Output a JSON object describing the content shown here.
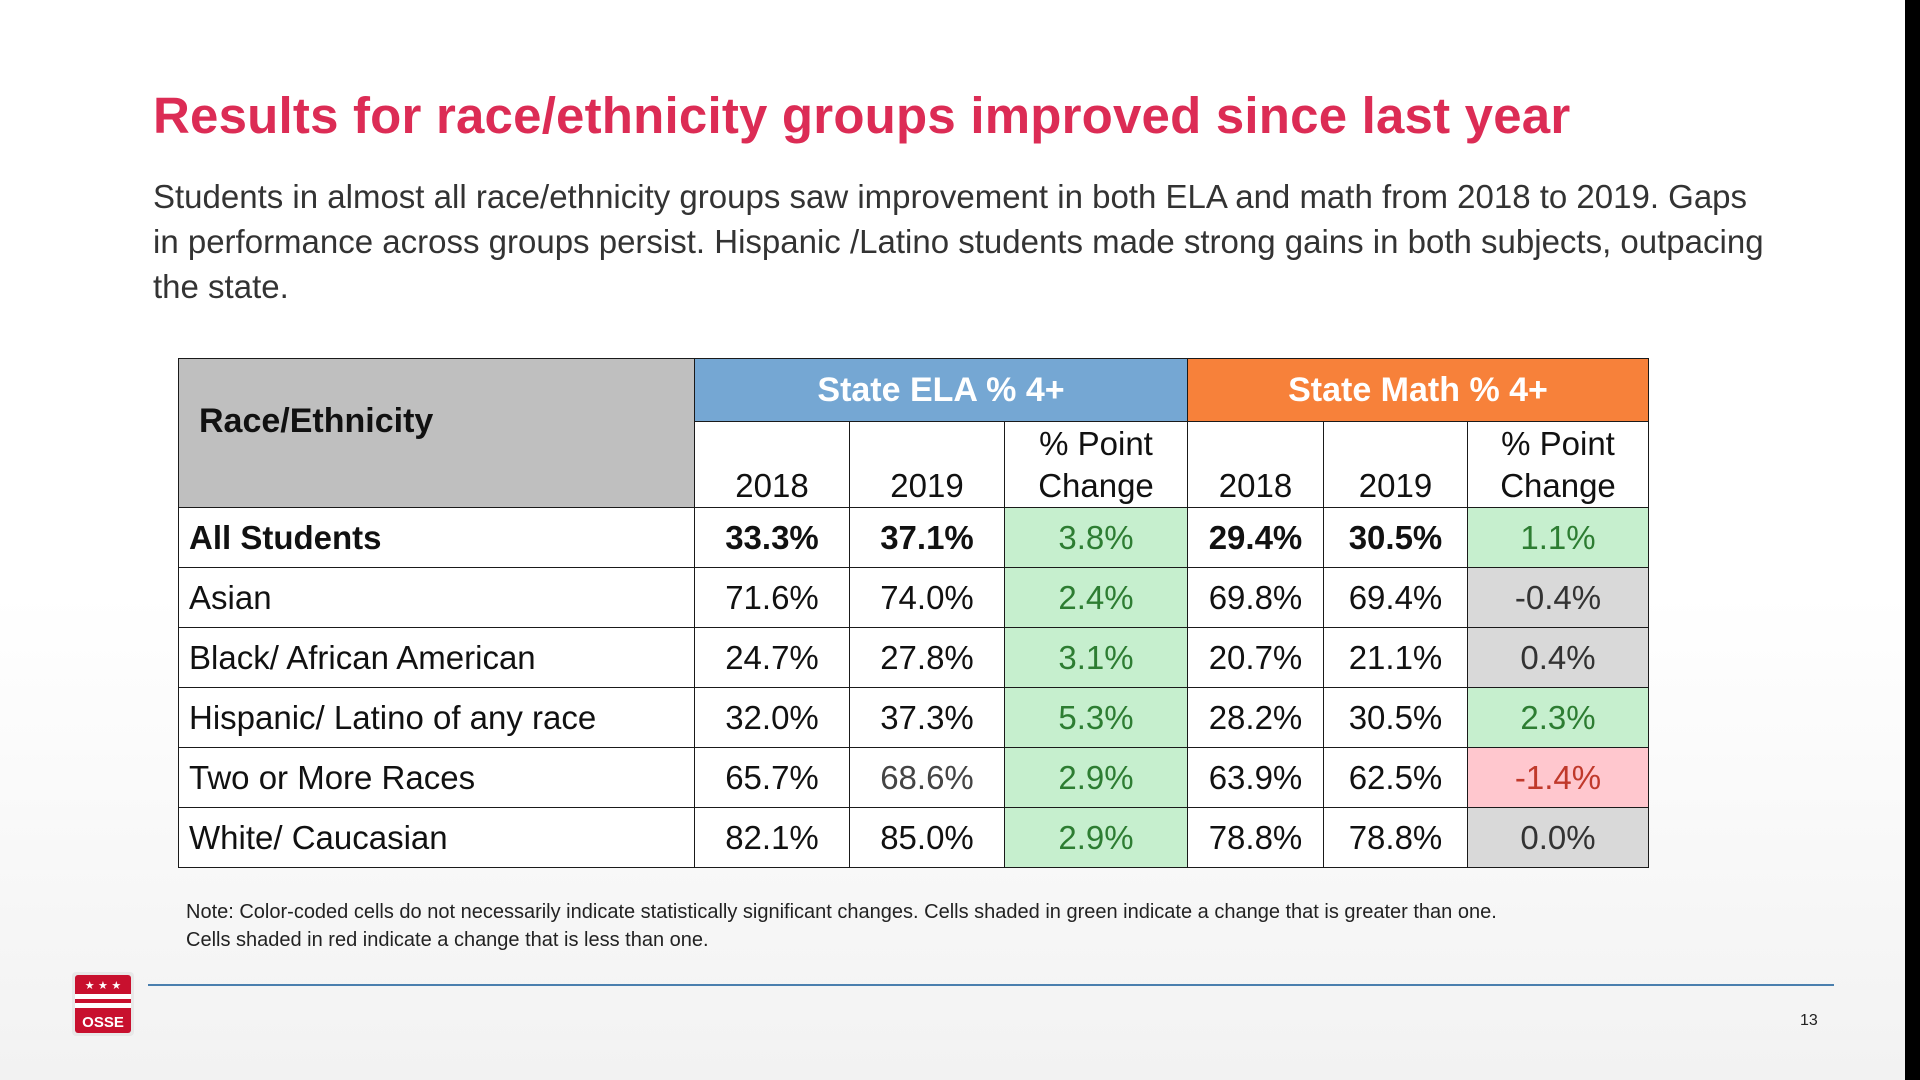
{
  "slide": {
    "title": "Results for race/ethnicity groups improved since last year",
    "subtitle": "Students in almost all race/ethnicity groups saw improvement in both ELA and math from 2018 to 2019. Gaps in performance across groups persist. Hispanic /Latino students made strong gains in both subjects, outpacing the state.",
    "note_line1": "Note: Color-coded cells do not necessarily indicate statistically significant changes. Cells shaded in green indicate a change that is greater than one.",
    "note_line2": "Cells shaded in red indicate a change that is less than one.",
    "page_number": "13",
    "logo_text": "OSSE",
    "logo_stars": "★ ★ ★",
    "colors": {
      "title": "#dc2c55",
      "ela_header": "#75a7d3",
      "math_header": "#f7813a",
      "green_cell": "#c6efce",
      "red_cell": "#ffc7ce",
      "grey_cell": "#d9d9d9"
    }
  },
  "table": {
    "race_header": "Race/Ethnicity",
    "ela_header": "State ELA % 4+",
    "math_header": "State Math % 4+",
    "col_2018": "2018",
    "col_2019": "2019",
    "col_change_line1": "% Point",
    "col_change_line2": "Change",
    "rows": [
      {
        "group": "All Students",
        "ela_2018": "33.3%",
        "ela_2019": "37.1%",
        "ela_change": "3.8%",
        "math_2018": "29.4%",
        "math_2019": "30.5%",
        "math_change": "1.1%",
        "ela_shade": "green",
        "math_shade": "green"
      },
      {
        "group": "Asian",
        "ela_2018": "71.6%",
        "ela_2019": "74.0%",
        "ela_change": "2.4%",
        "math_2018": "69.8%",
        "math_2019": "69.4%",
        "math_change": "-0.4%",
        "ela_shade": "green",
        "math_shade": "grey"
      },
      {
        "group": "Black/ African American",
        "ela_2018": "24.7%",
        "ela_2019": "27.8%",
        "ela_change": "3.1%",
        "math_2018": "20.7%",
        "math_2019": "21.1%",
        "math_change": "0.4%",
        "ela_shade": "green",
        "math_shade": "grey"
      },
      {
        "group": "Hispanic/ Latino of any race",
        "ela_2018": "32.0%",
        "ela_2019": "37.3%",
        "ela_change": "5.3%",
        "math_2018": "28.2%",
        "math_2019": "30.5%",
        "math_change": "2.3%",
        "ela_shade": "green",
        "math_shade": "green"
      },
      {
        "group": "Two or More Races",
        "ela_2018": "65.7%",
        "ela_2019": "68.6%",
        "ela_change": "2.9%",
        "math_2018": "63.9%",
        "math_2019": "62.5%",
        "math_change": "-1.4%",
        "ela_shade": "green",
        "math_shade": "red"
      },
      {
        "group": "White/ Caucasian",
        "ela_2018": "82.1%",
        "ela_2019": "85.0%",
        "ela_change": "2.9%",
        "math_2018": "78.8%",
        "math_2019": "78.8%",
        "math_change": "0.0%",
        "ela_shade": "green",
        "math_shade": "grey"
      }
    ]
  }
}
